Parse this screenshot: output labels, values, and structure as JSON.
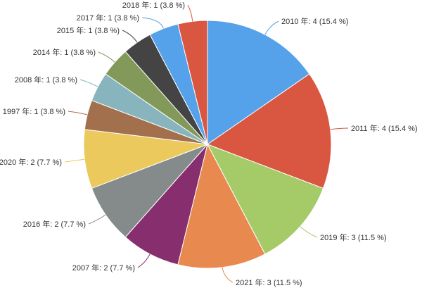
{
  "chart_data": {
    "type": "pie",
    "title": "",
    "slices": [
      {
        "label": "2010 年: 4 (15.4 %)",
        "value": 4,
        "color": "#55a2ea"
      },
      {
        "label": "2011 年: 4 (15.4 %)",
        "value": 4,
        "color": "#d95641"
      },
      {
        "label": "2019 年: 3 (11.5 %)",
        "value": 3,
        "color": "#a5cb68"
      },
      {
        "label": "2021 年: 3 (11.5 %)",
        "value": 3,
        "color": "#e88a4f"
      },
      {
        "label": "2007 年: 2 (7.7 %)",
        "value": 2,
        "color": "#862e6e"
      },
      {
        "label": "2016 年: 2 (7.7 %)",
        "value": 2,
        "color": "#858b8a"
      },
      {
        "label": "2020 年: 2 (7.7 %)",
        "value": 2,
        "color": "#ebc95d"
      },
      {
        "label": "1997 年: 1 (3.8 %)",
        "value": 1,
        "color": "#a3704e"
      },
      {
        "label": "2008 年: 1 (3.8 %)",
        "value": 1,
        "color": "#88b5bd"
      },
      {
        "label": "2014 年: 1 (3.8 %)",
        "value": 1,
        "color": "#82995a"
      },
      {
        "label": "2015 年: 1 (3.8 %)",
        "value": 1,
        "color": "#444444"
      },
      {
        "label": "2017 年: 1 (3.8 %)",
        "value": 1,
        "color": "#55a2ea"
      },
      {
        "label": "2018 年: 1 (3.8 %)",
        "value": 1,
        "color": "#d95641"
      }
    ]
  }
}
